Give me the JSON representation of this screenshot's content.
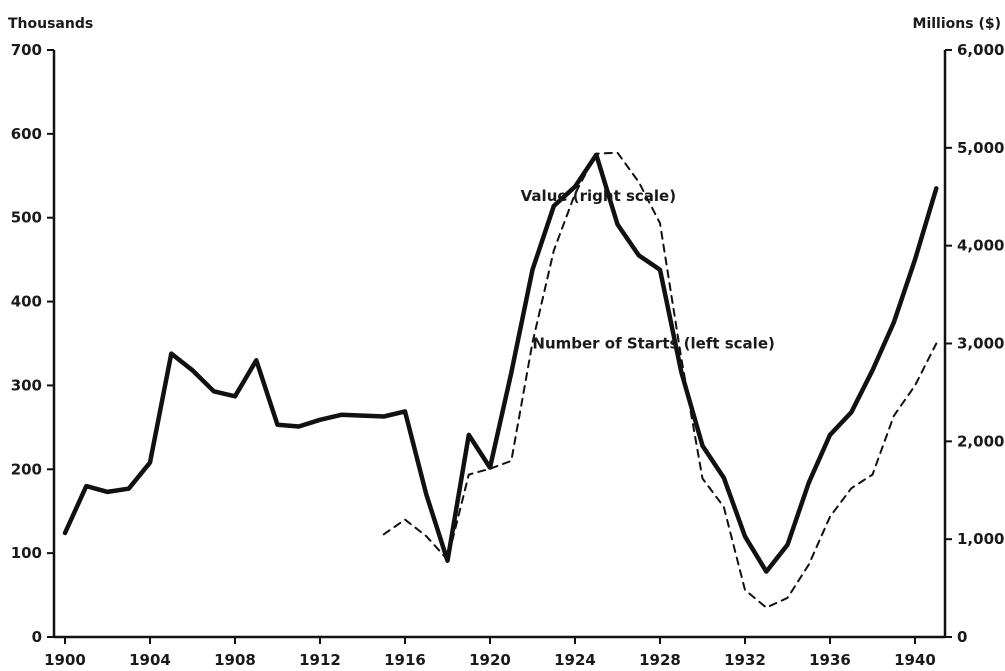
{
  "chart_data": {
    "type": "line",
    "title": "",
    "xlabel": "",
    "ylabel_left": "Thousands",
    "ylabel_right": "Millions ($)",
    "xlim": [
      1900,
      1941
    ],
    "ylim_left": [
      0,
      700
    ],
    "ylim_right": [
      0,
      6000
    ],
    "x_ticks": [
      1900,
      1904,
      1908,
      1912,
      1916,
      1920,
      1924,
      1928,
      1932,
      1936,
      1940
    ],
    "y_ticks_left": [
      "0",
      "100",
      "200",
      "300",
      "400",
      "500",
      "600",
      "700"
    ],
    "y_ticks_right": [
      "0",
      "1,000",
      "2,000",
      "3,000",
      "4,000",
      "5,000",
      "6,000"
    ],
    "y_tick_values_left": [
      0,
      100,
      200,
      300,
      400,
      500,
      600,
      700
    ],
    "y_tick_values_right": [
      0,
      1000,
      2000,
      3000,
      4000,
      5000,
      6000
    ],
    "grid": false,
    "legend": "none",
    "series": [
      {
        "axis": "left",
        "style": "solid",
        "color": "#111111",
        "points": [
          [
            1900,
            124
          ],
          [
            1901,
            180
          ],
          [
            1902,
            173
          ],
          [
            1903,
            177
          ],
          [
            1904,
            208
          ],
          [
            1905,
            338
          ],
          [
            1906,
            318
          ],
          [
            1907,
            293
          ],
          [
            1908,
            287
          ],
          [
            1909,
            330
          ],
          [
            1910,
            253
          ],
          [
            1911,
            251
          ],
          [
            1912,
            259
          ],
          [
            1913,
            265
          ],
          [
            1914,
            264
          ],
          [
            1915,
            263
          ],
          [
            1916,
            269
          ],
          [
            1917,
            170
          ],
          [
            1918,
            91
          ],
          [
            1919,
            241
          ],
          [
            1920,
            202
          ],
          [
            1921,
            315
          ],
          [
            1922,
            438
          ],
          [
            1923,
            514
          ],
          [
            1924,
            537
          ],
          [
            1925,
            575
          ],
          [
            1926,
            492
          ],
          [
            1927,
            455
          ],
          [
            1928,
            438
          ],
          [
            1929,
            316
          ],
          [
            1930,
            228
          ],
          [
            1931,
            190
          ],
          [
            1932,
            120
          ],
          [
            1933,
            78
          ],
          [
            1934,
            110
          ],
          [
            1935,
            184
          ],
          [
            1936,
            241
          ],
          [
            1937,
            268
          ],
          [
            1938,
            318
          ],
          [
            1939,
            375
          ],
          [
            1940,
            450
          ],
          [
            1941,
            535
          ]
        ]
      },
      {
        "axis": "right",
        "style": "dashed",
        "color": "#111111",
        "points": [
          [
            1915,
            1050
          ],
          [
            1916,
            1200
          ],
          [
            1917,
            1030
          ],
          [
            1918,
            790
          ],
          [
            1919,
            1660
          ],
          [
            1920,
            1720
          ],
          [
            1921,
            1800
          ],
          [
            1922,
            3010
          ],
          [
            1923,
            3950
          ],
          [
            1924,
            4530
          ],
          [
            1925,
            4940
          ],
          [
            1926,
            4950
          ],
          [
            1927,
            4650
          ],
          [
            1928,
            4230
          ],
          [
            1929,
            2850
          ],
          [
            1930,
            1620
          ],
          [
            1931,
            1330
          ],
          [
            1932,
            480
          ],
          [
            1933,
            300
          ],
          [
            1934,
            400
          ],
          [
            1935,
            740
          ],
          [
            1936,
            1230
          ],
          [
            1937,
            1520
          ],
          [
            1938,
            1660
          ],
          [
            1939,
            2260
          ],
          [
            1940,
            2570
          ],
          [
            1941,
            3000
          ]
        ]
      }
    ],
    "annotations": [
      {
        "text": "Number of Starts (left scale)",
        "x": 1927.7,
        "y_left": 350
      },
      {
        "text": "Value (right scale)",
        "x": 1925.1,
        "y_left": 526
      }
    ]
  }
}
